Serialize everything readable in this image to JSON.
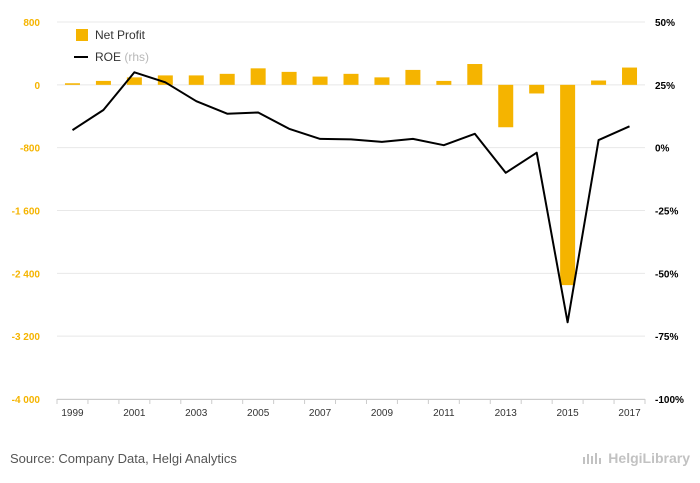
{
  "chart_data": {
    "type": "bar+line",
    "categories": [
      "1999",
      "2000",
      "2001",
      "2002",
      "2003",
      "2004",
      "2005",
      "2006",
      "2007",
      "2008",
      "2009",
      "2010",
      "2011",
      "2012",
      "2013",
      "2014",
      "2015",
      "2016",
      "2017"
    ],
    "x_tick_labels": [
      "1999",
      "2001",
      "2003",
      "2005",
      "2007",
      "2009",
      "2011",
      "2013",
      "2015",
      "2017"
    ],
    "series": [
      {
        "name": "Net Profit",
        "type": "bar",
        "axis": "left",
        "color": "#f5b400",
        "values": [
          20,
          50,
          95,
          120,
          120,
          140,
          210,
          165,
          105,
          140,
          95,
          190,
          50,
          265,
          -540,
          -110,
          -2550,
          55,
          220
        ]
      },
      {
        "name": "ROE",
        "axis_note": "(rhs)",
        "type": "line",
        "axis": "right",
        "color": "#000000",
        "values": [
          7.0,
          15.0,
          30.0,
          26.0,
          18.5,
          13.5,
          14.0,
          7.5,
          3.5,
          3.3,
          2.3,
          3.5,
          1.0,
          5.5,
          -10.0,
          -2.0,
          -69.5,
          3.0,
          8.5
        ]
      }
    ],
    "y_left": {
      "min": -4000,
      "max": 800,
      "ticks": [
        800,
        0,
        -800,
        -1600,
        -2400,
        -3200,
        -4000
      ],
      "tick_labels": [
        "800",
        "0",
        "-800",
        "-1 600",
        "-2 400",
        "-3 200",
        "-4 000"
      ],
      "color": "#f5b400"
    },
    "y_right": {
      "min": -100,
      "max": 50,
      "ticks": [
        50,
        25,
        0,
        -25,
        -50,
        -75,
        -100
      ],
      "tick_labels": [
        "50%",
        "25%",
        "0%",
        "-25%",
        "-50%",
        "-75%",
        "-100%"
      ],
      "color": "#000000"
    },
    "legend_position": "top-left",
    "grid": true
  },
  "footer": {
    "source": "Source: Company Data, Helgi Analytics",
    "brand": "HelgiLibrary"
  },
  "colors": {
    "bar": "#f5b400",
    "line": "#000000",
    "grid": "#e8e8e8"
  }
}
